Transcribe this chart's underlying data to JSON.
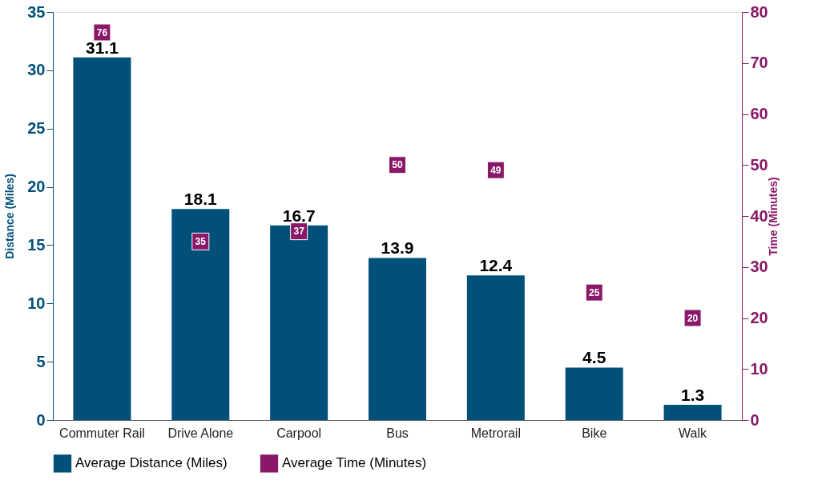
{
  "chart_data": {
    "type": "bar",
    "categories": [
      "Commuter Rail",
      "Drive Alone",
      "Carpool",
      "Bus",
      "Metrorail",
      "Bike",
      "Walk"
    ],
    "series": [
      {
        "name": "Average Distance (Miles)",
        "color": "#00507a",
        "values": [
          31.1,
          18.1,
          16.7,
          13.9,
          12.4,
          4.5,
          1.3
        ]
      },
      {
        "name": "Average Time (Minutes)",
        "color": "#8a1868",
        "type": "scatter",
        "axis": "y2",
        "marker": "square",
        "values": [
          76,
          35,
          37,
          50,
          49,
          25,
          20
        ]
      }
    ],
    "ylabel": "Distance (Miles)",
    "y2label": "Time (Minutes)",
    "ylim": [
      0,
      35
    ],
    "yticks": [
      0,
      5,
      10,
      15,
      20,
      25,
      30,
      35
    ],
    "y2lim": [
      0,
      80
    ],
    "y2ticks": [
      0,
      10,
      20,
      30,
      40,
      50,
      60,
      70,
      80
    ],
    "data_labels": true,
    "grid": false,
    "legend": "bottom"
  }
}
